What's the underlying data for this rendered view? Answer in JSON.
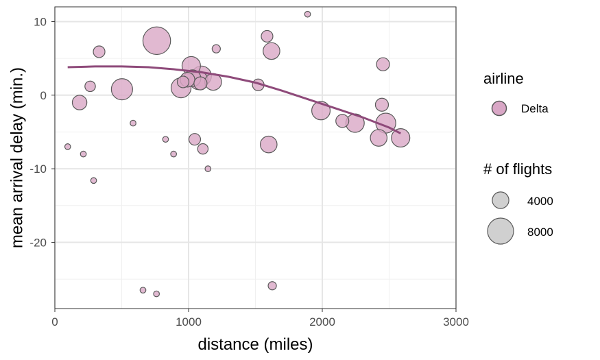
{
  "chart_data": {
    "type": "scatter",
    "xlabel": "distance (miles)",
    "ylabel": "mean arrival delay (min.)",
    "xlim": [
      0,
      3000
    ],
    "ylim": [
      -29,
      12
    ],
    "x_ticks": [
      0,
      1000,
      2000,
      3000
    ],
    "y_ticks": [
      -20,
      -10,
      0,
      10
    ],
    "grid": true,
    "legend_position": "right",
    "colors": {
      "point_fill": "#d9a7c6",
      "point_stroke": "#5a5a5a",
      "smooth_line": "#8e4a7a",
      "size_legend_fill": "#d0d0d0"
    },
    "legend": {
      "color_title": "airline",
      "color_entries": [
        "Delta"
      ],
      "size_title": "# of flights",
      "size_entries": [
        4000,
        8000
      ]
    },
    "series": [
      {
        "name": "Delta",
        "points": [
          {
            "x": 96,
            "y": -7.0,
            "n": 400
          },
          {
            "x": 185,
            "y": -1.0,
            "n": 2500
          },
          {
            "x": 213,
            "y": -8.0,
            "n": 400
          },
          {
            "x": 264,
            "y": 1.2,
            "n": 1300
          },
          {
            "x": 290,
            "y": -11.6,
            "n": 400
          },
          {
            "x": 331,
            "y": 5.9,
            "n": 1600
          },
          {
            "x": 502,
            "y": 0.8,
            "n": 5300
          },
          {
            "x": 585,
            "y": -3.8,
            "n": 400
          },
          {
            "x": 659,
            "y": -26.5,
            "n": 400
          },
          {
            "x": 762,
            "y": 7.4,
            "n": 9000
          },
          {
            "x": 760,
            "y": -27.0,
            "n": 400
          },
          {
            "x": 828,
            "y": -6.0,
            "n": 400
          },
          {
            "x": 888,
            "y": -8.0,
            "n": 400
          },
          {
            "x": 944,
            "y": 1.0,
            "n": 4700
          },
          {
            "x": 959,
            "y": 1.8,
            "n": 1600
          },
          {
            "x": 992,
            "y": 2.1,
            "n": 2500
          },
          {
            "x": 1020,
            "y": 4.0,
            "n": 4000
          },
          {
            "x": 1029,
            "y": 2.3,
            "n": 3300
          },
          {
            "x": 1046,
            "y": -6.0,
            "n": 1600
          },
          {
            "x": 1076,
            "y": 2.0,
            "n": 4000
          },
          {
            "x": 1089,
            "y": 1.6,
            "n": 2000
          },
          {
            "x": 1096,
            "y": 2.6,
            "n": 4700
          },
          {
            "x": 1107,
            "y": -7.3,
            "n": 1300
          },
          {
            "x": 1145,
            "y": -10.0,
            "n": 400
          },
          {
            "x": 1184,
            "y": 1.8,
            "n": 3300
          },
          {
            "x": 1207,
            "y": 6.3,
            "n": 800
          },
          {
            "x": 1521,
            "y": 1.4,
            "n": 1600
          },
          {
            "x": 1587,
            "y": 8.0,
            "n": 1600
          },
          {
            "x": 1599,
            "y": -6.7,
            "n": 3300
          },
          {
            "x": 1620,
            "y": 6.0,
            "n": 3300
          },
          {
            "x": 1626,
            "y": -25.9,
            "n": 800
          },
          {
            "x": 1890,
            "y": 11.0,
            "n": 400
          },
          {
            "x": 1990,
            "y": -2.1,
            "n": 4000
          },
          {
            "x": 2150,
            "y": -3.5,
            "n": 2000
          },
          {
            "x": 2245,
            "y": -3.8,
            "n": 4000
          },
          {
            "x": 2422,
            "y": -5.8,
            "n": 3300
          },
          {
            "x": 2446,
            "y": -1.3,
            "n": 2000
          },
          {
            "x": 2454,
            "y": 4.2,
            "n": 2000
          },
          {
            "x": 2475,
            "y": -3.8,
            "n": 4700
          },
          {
            "x": 2586,
            "y": -5.8,
            "n": 4000
          }
        ]
      }
    ],
    "smooth": {
      "x": [
        96,
        300,
        500,
        700,
        900,
        1100,
        1300,
        1500,
        1700,
        1900,
        2100,
        2300,
        2500,
        2586
      ],
      "y": [
        3.8,
        3.9,
        3.9,
        3.8,
        3.5,
        3.1,
        2.5,
        1.7,
        0.6,
        -0.6,
        -1.8,
        -3.0,
        -4.4,
        -5.2
      ]
    }
  }
}
